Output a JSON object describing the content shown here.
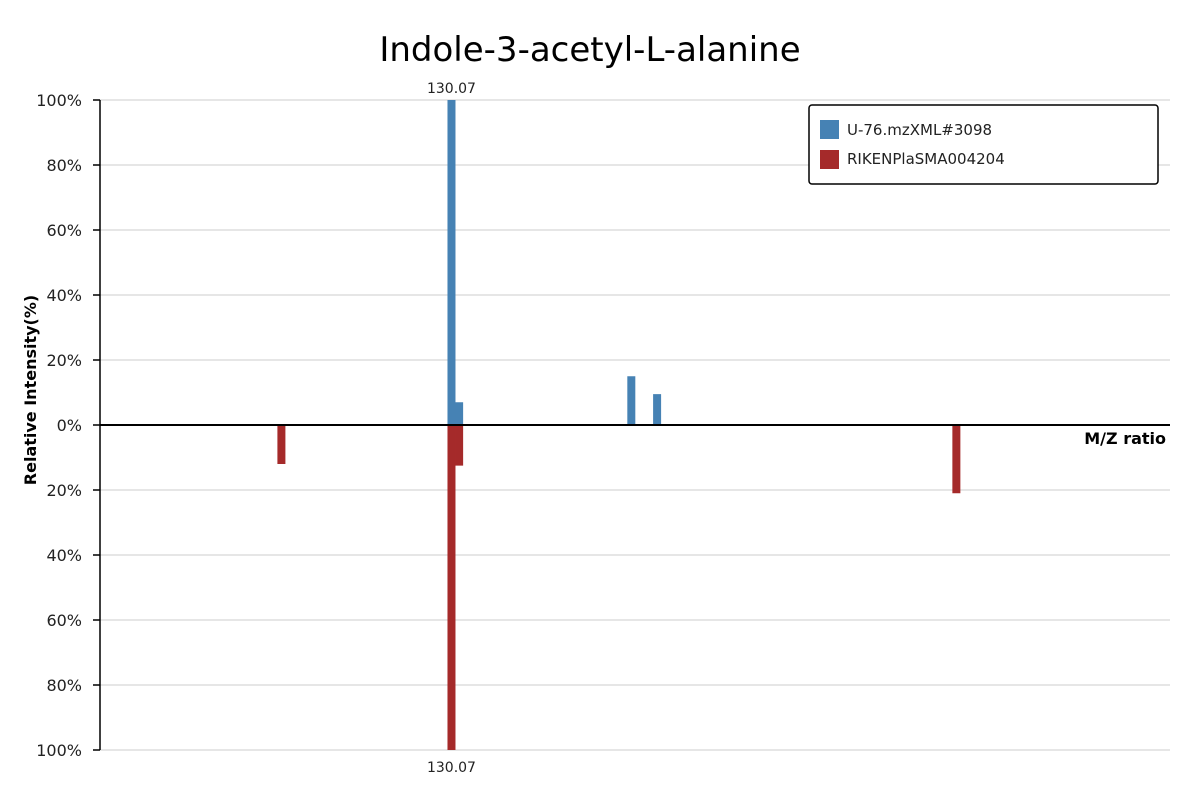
{
  "chart_data": {
    "type": "bar",
    "title": "Indole-3-acetyl-L-alanine",
    "xlabel": "M/Z ratio",
    "ylabel": "Relative Intensity(%)",
    "mirror": true,
    "ylim": [
      -100,
      100
    ],
    "y_ticks": [
      {
        "value": 100,
        "label": "100%"
      },
      {
        "value": 80,
        "label": "80%"
      },
      {
        "value": 60,
        "label": "60%"
      },
      {
        "value": 40,
        "label": "40%"
      },
      {
        "value": 20,
        "label": "20%"
      },
      {
        "value": 0,
        "label": "0%"
      },
      {
        "value": -20,
        "label": "20%"
      },
      {
        "value": -40,
        "label": "40%"
      },
      {
        "value": -60,
        "label": "60%"
      },
      {
        "value": -80,
        "label": "80%"
      },
      {
        "value": -100,
        "label": "100%"
      }
    ],
    "xlim": [
      91.9,
      208.1
    ],
    "grid": true,
    "legend": {
      "position": "top-right"
    },
    "series": [
      {
        "name": "U-76.mzXML#3098",
        "color": "#4682b4",
        "direction": "up",
        "peaks": [
          {
            "mz": 130.07,
            "intensity": 100,
            "label": "130.07"
          },
          {
            "mz": 130.9,
            "intensity": 7
          },
          {
            "mz": 149.6,
            "intensity": 15
          },
          {
            "mz": 152.4,
            "intensity": 9.5
          }
        ]
      },
      {
        "name": "RIKENPlaSMA004204",
        "color": "#a52a2a",
        "direction": "down",
        "peaks": [
          {
            "mz": 111.6,
            "intensity": 12
          },
          {
            "mz": 130.07,
            "intensity": 100,
            "label": "130.07"
          },
          {
            "mz": 130.9,
            "intensity": 12.5
          },
          {
            "mz": 184.9,
            "intensity": 21
          }
        ]
      }
    ]
  }
}
